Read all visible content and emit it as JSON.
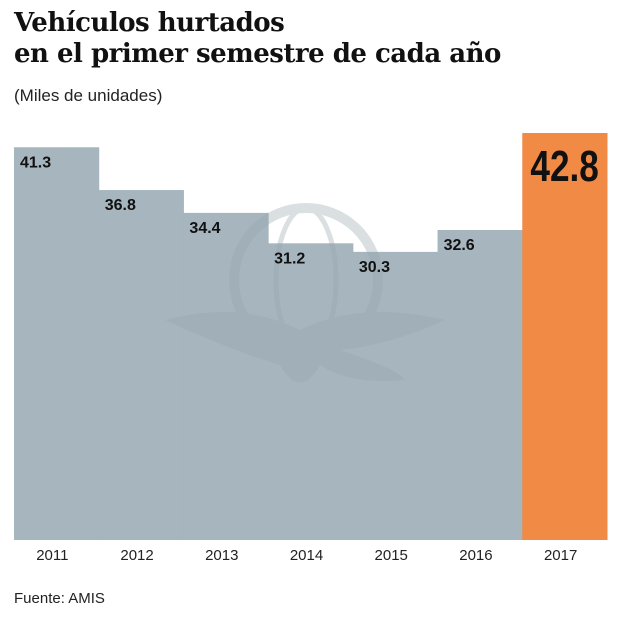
{
  "title_line1": "Vehículos hurtados",
  "title_line2": "en el primer semestre de cada año",
  "subtitle": "(Miles de unidades)",
  "source": "Fuente: AMIS",
  "colors": {
    "bar": "#a6b5be",
    "highlight": "#f08a45",
    "watermark": "#97a6af"
  },
  "chart_data": {
    "type": "bar",
    "categories": [
      "2011",
      "2012",
      "2013",
      "2014",
      "2015",
      "2016",
      "2017"
    ],
    "values": [
      41.3,
      36.8,
      34.4,
      31.2,
      30.3,
      32.6,
      42.8
    ],
    "labels": [
      "41.3",
      "36.8",
      "34.4",
      "31.2",
      "30.3",
      "32.6",
      "42.8"
    ],
    "highlight_index": 6,
    "ylim": [
      0,
      42.8
    ],
    "grid": false,
    "legend": "none"
  }
}
